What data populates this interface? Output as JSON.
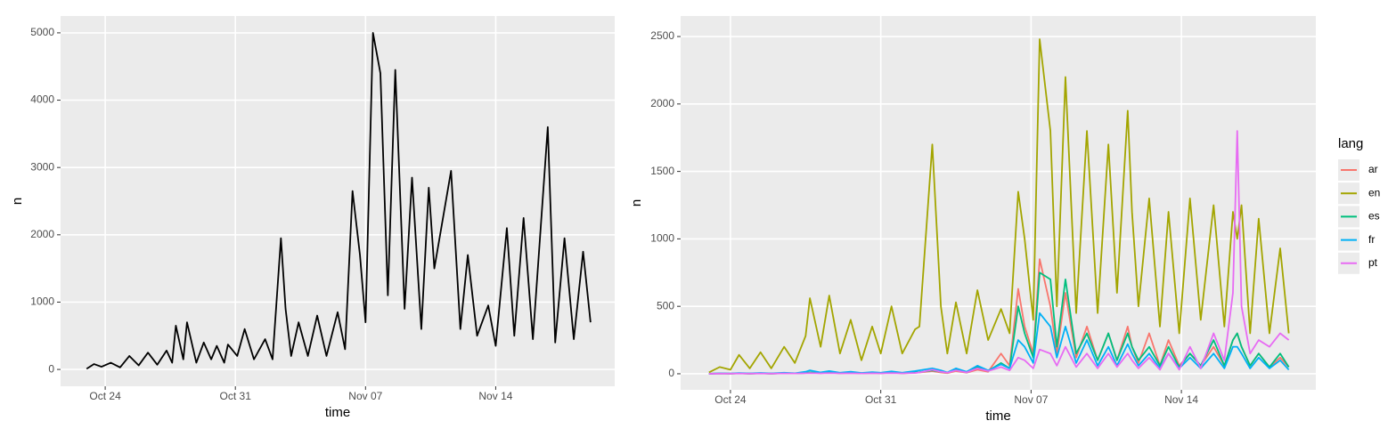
{
  "chart_data": [
    {
      "type": "line",
      "xlabel": "time",
      "ylabel": "n",
      "color": "#000000",
      "grid": true,
      "xlim": [
        -2.4,
        27.4
      ],
      "ylim": [
        -250,
        5250
      ],
      "xticks": [
        {
          "value": 0,
          "label": "Oct 24"
        },
        {
          "value": 7,
          "label": "Oct 31"
        },
        {
          "value": 14,
          "label": "Nov 07"
        },
        {
          "value": 21,
          "label": "Nov 14"
        }
      ],
      "yticks": [
        0,
        1000,
        2000,
        3000,
        4000,
        5000
      ],
      "x": [
        -1.0,
        -0.6,
        -0.2,
        0.3,
        0.8,
        1.3,
        1.8,
        2.3,
        2.8,
        3.3,
        3.6,
        3.8,
        4.2,
        4.4,
        4.9,
        5.3,
        5.7,
        6.0,
        6.4,
        6.6,
        7.1,
        7.5,
        8.0,
        8.6,
        9.0,
        9.45,
        9.7,
        10.0,
        10.4,
        10.9,
        11.4,
        11.9,
        12.5,
        12.9,
        13.3,
        13.7,
        14.0,
        14.4,
        14.8,
        15.2,
        15.6,
        16.1,
        16.5,
        17.0,
        17.4,
        17.7,
        18.6,
        19.1,
        19.5,
        20.0,
        20.6,
        21.0,
        21.6,
        22.0,
        22.5,
        23.0,
        23.8,
        24.2,
        24.7,
        25.2,
        25.7,
        26.1
      ],
      "values": [
        10,
        80,
        40,
        100,
        30,
        200,
        60,
        250,
        70,
        280,
        100,
        650,
        150,
        700,
        100,
        400,
        150,
        350,
        100,
        370,
        200,
        600,
        150,
        450,
        150,
        1950,
        900,
        200,
        700,
        200,
        800,
        200,
        850,
        300,
        2650,
        1700,
        700,
        5000,
        4400,
        1100,
        4450,
        900,
        2850,
        600,
        2700,
        1500,
        2950,
        600,
        1700,
        500,
        950,
        350,
        2100,
        500,
        2250,
        450,
        3600,
        400,
        1950,
        450,
        1750,
        700
      ]
    },
    {
      "type": "line",
      "xlabel": "time",
      "ylabel": "n",
      "legend_title": "lang",
      "grid": true,
      "xlim": [
        -2.32,
        27.26
      ],
      "ylim": [
        -119,
        2652
      ],
      "xticks": [
        {
          "value": 0,
          "label": "Oct 24"
        },
        {
          "value": 7,
          "label": "Oct 31"
        },
        {
          "value": 14,
          "label": "Nov 07"
        },
        {
          "value": 21,
          "label": "Nov 14"
        }
      ],
      "yticks": [
        0,
        500,
        1000,
        1500,
        2000,
        2500
      ],
      "x": [
        -1.0,
        -0.5,
        0,
        0.4,
        0.9,
        1.4,
        1.9,
        2.5,
        3.0,
        3.5,
        3.7,
        4.2,
        4.6,
        5.1,
        5.6,
        6.1,
        6.6,
        7.0,
        7.5,
        8.0,
        8.6,
        8.8,
        9.4,
        9.8,
        10.1,
        10.5,
        11.0,
        11.5,
        12.0,
        12.6,
        13.0,
        13.4,
        13.7,
        14.1,
        14.4,
        14.9,
        15.2,
        15.6,
        16.1,
        16.6,
        17.1,
        17.6,
        18.0,
        18.5,
        18.7,
        19.0,
        19.5,
        20.0,
        20.4,
        20.9,
        21.4,
        21.9,
        22.5,
        23.0,
        23.4,
        23.6,
        23.8,
        24.2,
        24.6,
        25.1,
        25.6,
        26.0
      ],
      "series": [
        {
          "name": "ar",
          "color": "#F8766D",
          "values": [
            0,
            2,
            1,
            3,
            1,
            3,
            1,
            4,
            2,
            5,
            8,
            4,
            8,
            3,
            6,
            2,
            5,
            3,
            8,
            3,
            8,
            10,
            20,
            10,
            5,
            20,
            8,
            30,
            15,
            150,
            60,
            630,
            350,
            150,
            850,
            500,
            150,
            600,
            120,
            350,
            100,
            300,
            100,
            350,
            200,
            80,
            300,
            60,
            250,
            60,
            150,
            60,
            200,
            60,
            250,
            300,
            200,
            60,
            150,
            50,
            120,
            50
          ]
        },
        {
          "name": "en",
          "color": "#A3A500",
          "values": [
            10,
            50,
            30,
            140,
            40,
            160,
            40,
            200,
            80,
            280,
            560,
            200,
            580,
            150,
            400,
            100,
            350,
            150,
            500,
            150,
            330,
            350,
            1700,
            500,
            150,
            530,
            150,
            620,
            250,
            480,
            300,
            1350,
            1000,
            400,
            2480,
            1800,
            500,
            2200,
            450,
            1800,
            450,
            1700,
            600,
            1950,
            1200,
            500,
            1300,
            350,
            1200,
            300,
            1300,
            400,
            1250,
            350,
            1200,
            1000,
            1250,
            300,
            1150,
            300,
            930,
            300
          ]
        },
        {
          "name": "es",
          "color": "#00BF7D",
          "values": [
            0,
            2,
            1,
            3,
            1,
            3,
            1,
            4,
            2,
            6,
            10,
            5,
            10,
            4,
            8,
            3,
            7,
            4,
            10,
            4,
            10,
            12,
            25,
            15,
            8,
            30,
            10,
            50,
            20,
            80,
            40,
            500,
            300,
            120,
            750,
            700,
            200,
            700,
            150,
            300,
            100,
            300,
            100,
            300,
            200,
            100,
            200,
            60,
            200,
            50,
            150,
            60,
            250,
            60,
            250,
            300,
            200,
            60,
            150,
            50,
            150,
            50
          ]
        },
        {
          "name": "fr",
          "color": "#00B0F6",
          "values": [
            0,
            3,
            2,
            5,
            3,
            6,
            3,
            8,
            4,
            15,
            25,
            10,
            20,
            8,
            15,
            6,
            12,
            8,
            18,
            8,
            20,
            25,
            40,
            25,
            10,
            40,
            15,
            60,
            25,
            70,
            40,
            250,
            200,
            80,
            450,
            350,
            120,
            350,
            80,
            250,
            60,
            200,
            60,
            220,
            150,
            60,
            150,
            40,
            150,
            40,
            120,
            40,
            150,
            40,
            200,
            200,
            150,
            40,
            120,
            40,
            100,
            30
          ]
        },
        {
          "name": "pt",
          "color": "#E76BF3",
          "values": [
            0,
            1,
            1,
            2,
            1,
            2,
            1,
            3,
            2,
            4,
            5,
            3,
            5,
            3,
            4,
            2,
            4,
            3,
            5,
            3,
            6,
            10,
            30,
            15,
            8,
            25,
            10,
            40,
            20,
            50,
            25,
            120,
            100,
            40,
            180,
            150,
            60,
            200,
            50,
            150,
            40,
            150,
            50,
            150,
            100,
            40,
            120,
            30,
            150,
            30,
            200,
            40,
            300,
            100,
            600,
            1800,
            500,
            150,
            250,
            200,
            300,
            250
          ]
        }
      ]
    }
  ]
}
